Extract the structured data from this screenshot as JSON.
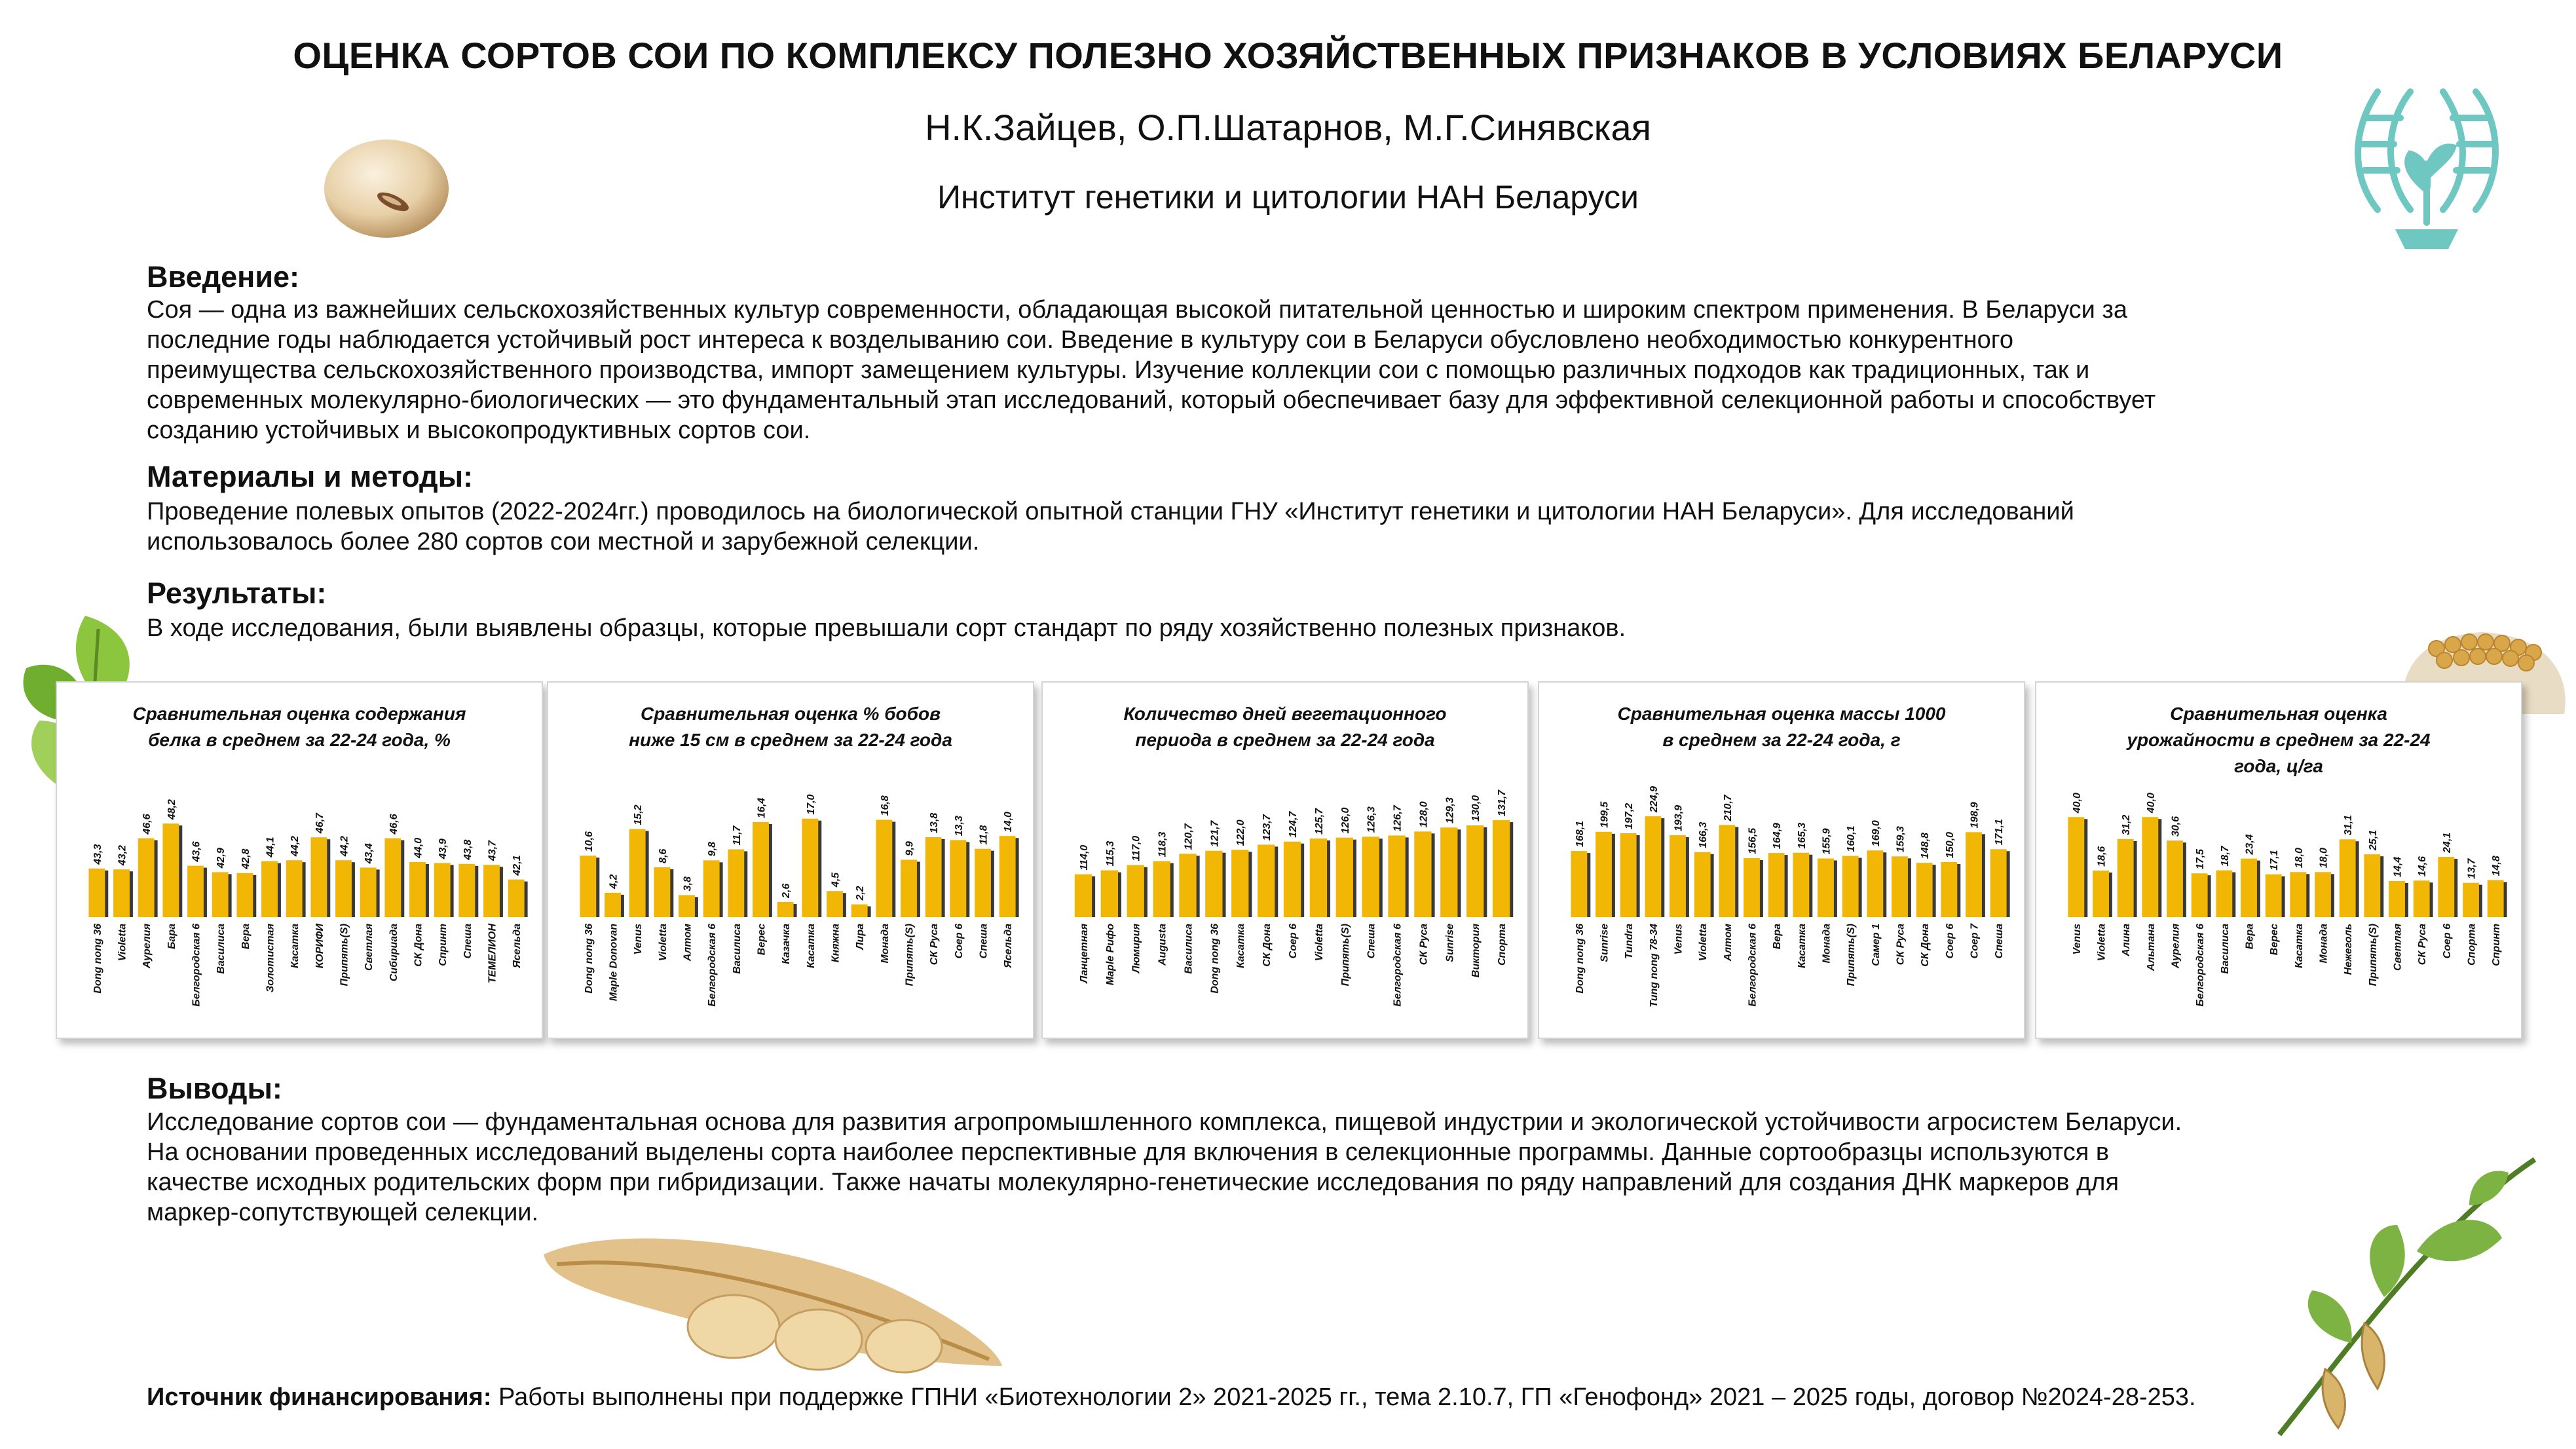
{
  "header": {
    "title": "ОЦЕНКА СОРТОВ СОИ ПО КОМПЛЕКСУ ПОЛЕЗНО ХОЗЯЙСТВЕННЫХ ПРИЗНАКОВ В УСЛОВИЯХ БЕЛАРУСИ",
    "authors": "Н.К.Зайцев, О.П.Шатарнов, М.Г.Синявская",
    "institute": "Институт генетики и цитологии НАН Беларуси"
  },
  "intro": {
    "heading": "Введение:",
    "lines": [
      "Соя — одна из важнейших сельскохозяйственных культур современности, обладающая высокой питательной ценностью и широким спектром применения. В Беларуси за",
      "последние годы наблюдается устойчивый рост интереса к  возделыванию сои. Введение в культуру сои в Беларуси обусловлено необходимостью конкурентного",
      "преимущества сельскохозяйственного производства, импорт замещением культуры. Изучение коллекции сои с помощью различных подходов как традиционных, так и",
      "современных молекулярно-биологических — это фундаментальный этап исследований, который обеспечивает базу для эффективной селекционной работы и способствует",
      "созданию устойчивых и высокопродуктивных сортов сои."
    ]
  },
  "methods": {
    "heading": "Материалы и методы:",
    "lines": [
      "Проведение полевых опытов (2022-2024гг.) проводилось на биологической опытной станции ГНУ «Институт генетики и цитологии НАН Беларуси». Для исследований",
      "использовалось более 280 сортов сои местной и зарубежной селекции."
    ]
  },
  "results": {
    "heading": "Результаты:",
    "lines": [
      "В ходе исследования, были выявлены образцы, которые превышали сорт стандарт по ряду хозяйственно полезных признаков."
    ]
  },
  "conclusions": {
    "heading": "Выводы:",
    "lines": [
      "Исследование сортов сои — фундаментальная основа для развития агропромышленного комплекса, пищевой индустрии и экологической устойчивости агросистем Беларуси.",
      "На основании проведенных исследований выделены сорта наиболее перспективные для включения в селекционные программы. Данные сортообразцы используются в",
      "качестве исходных родительских форм при гибридизации. Также начаты молекулярно-генетические исследования по ряду направлений для создания ДНК маркеров для",
      "маркер-сопутствующей селекции."
    ]
  },
  "funding": {
    "label": "Источник финансирования:",
    "text": " Работы выполнены при поддержке ГПНИ «Биотехнологии 2» 2021-2025 гг., тема 2.10.7, ГП «Генофонд» 2021 – 2025 годы, договор №2024-28-253."
  },
  "colors": {
    "bar": "#f2b705",
    "bar_shadow": "#3a3a3a",
    "logo": "#6fc7c2"
  },
  "chart_data": [
    {
      "type": "bar",
      "title_lines": [
        "Сравнительная оценка содержания",
        "белка в среднем за 22-24 года, %"
      ],
      "categories": [
        "Dong nong 36",
        "Violetta",
        "Аурелия",
        "Бара",
        "Белгородская 6",
        "Василиса",
        "Вера",
        "Золотистая",
        "Касатка",
        "КОРИФИ",
        "Припять(S)",
        "Светлая",
        "Сибириада",
        "СК Дона",
        "Спринт",
        "Спеша",
        "ТЕМЕЛИОН",
        "Ясельда"
      ],
      "values": [
        43.3,
        43.2,
        46.6,
        48.2,
        43.6,
        42.9,
        42.8,
        44.1,
        44.2,
        46.7,
        44.2,
        43.4,
        46.6,
        44.0,
        43.9,
        43.8,
        43.7,
        42.1
      ],
      "value_labels": [
        "43,3",
        "43,2",
        "46,6",
        "48,2",
        "43,6",
        "42,9",
        "42,8",
        "44,1",
        "44,2",
        "46,7",
        "44,2",
        "43,4",
        "46,6",
        "44,0",
        "43,9",
        "43,8",
        "43,7",
        "42,1"
      ],
      "ylim": [
        38,
        50
      ]
    },
    {
      "type": "bar",
      "title_lines": [
        "Сравнительная оценка % бобов",
        "ниже 15 см в среднем за 22-24 года"
      ],
      "categories": [
        "Dong nong 36",
        "Maple Donovan",
        "Venus",
        "Violetta",
        "Алтом",
        "Белгородская 6",
        "Василиса",
        "Верес",
        "Казачка",
        "Касатка",
        "Княжна",
        "Лира",
        "Монада",
        "Припять(S)",
        "СК Руса",
        "Соер 6",
        "Спеша",
        "Ясельда"
      ],
      "values": [
        10.6,
        4.2,
        15.2,
        8.6,
        3.8,
        9.8,
        11.7,
        16.4,
        2.6,
        17.0,
        4.5,
        2.2,
        16.8,
        9.9,
        13.8,
        13.3,
        11.8,
        14.0
      ],
      "value_labels": [
        "10,6",
        "4,2",
        "15,2",
        "8,6",
        "3,8",
        "9,8",
        "11,7",
        "16,4",
        "2,6",
        "17,0",
        "4,5",
        "2,2",
        "16,8",
        "9,9",
        "13,8",
        "13,3",
        "11,8",
        "14,0"
      ],
      "ylim": [
        0,
        19
      ]
    },
    {
      "type": "bar",
      "title_lines": [
        "Количество дней вегетационного",
        "периода в среднем за 22-24 года"
      ],
      "categories": [
        "Ланцетная",
        "Maple Puфо",
        "Люмирия",
        "Augusta",
        "Василиса",
        "Dong nong 36",
        "Касатка",
        "СК Дона",
        "Соер 6",
        "Violetta",
        "Припять(S)",
        "Спеша",
        "Белгородская 6",
        "СК Руса",
        "Sunrise",
        "Виктория",
        "Спорта"
      ],
      "values": [
        114.0,
        115.3,
        117.0,
        118.3,
        120.7,
        121.7,
        122.0,
        123.7,
        124.7,
        125.7,
        126.0,
        126.3,
        126.7,
        128.0,
        129.3,
        130.0,
        131.7
      ],
      "value_labels": [
        "114,0",
        "115,3",
        "117,0",
        "118,3",
        "120,7",
        "121,7",
        "122,0",
        "123,7",
        "124,7",
        "125,7",
        "126,0",
        "126,3",
        "126,7",
        "128,0",
        "129,3",
        "130,0",
        "131,7"
      ],
      "ylim": [
        100,
        136
      ]
    },
    {
      "type": "bar",
      "title_lines": [
        "Сравнительная оценка массы 1000",
        "в среднем за 22-24 года, г"
      ],
      "categories": [
        "Dong nong 36",
        "Sunrise",
        "Tundra",
        "Tung nong 78-34",
        "Venus",
        "Violetta",
        "Алтом",
        "Белгородская 6",
        "Вера",
        "Касатка",
        "Монада",
        "Припять(S)",
        "Самер 1",
        "СК Руса",
        "СК Дона",
        "Соер 6",
        "Соер 7",
        "Спеша"
      ],
      "values": [
        168.1,
        199.5,
        197.2,
        224.9,
        193.9,
        166.3,
        210.7,
        156.5,
        164.9,
        165.3,
        155.9,
        160.1,
        169.0,
        159.3,
        148.8,
        150.0,
        198.9,
        171.1
      ],
      "value_labels": [
        "168,1",
        "199,5",
        "197,2",
        "224,9",
        "193,9",
        "166,3",
        "210,7",
        "156,5",
        "164,9",
        "165,3",
        "155,9",
        "160,1",
        "169,0",
        "159,3",
        "148,8",
        "150,0",
        "198,9",
        "171,1"
      ],
      "ylim": [
        60,
        240
      ]
    },
    {
      "type": "bar",
      "title_lines": [
        "Сравнительная оценка",
        "урожайности в среднем за 22-24",
        "года, ц/га"
      ],
      "categories": [
        "Venus",
        "Violetta",
        "Алина",
        "Альтана",
        "Аурелия",
        "Белгородская 6",
        "Василиса",
        "Вера",
        "Верес",
        "Касатка",
        "Монада",
        "Нежеголь",
        "Припять(S)",
        "Светлая",
        "СК Руса",
        "Соер 6",
        "Спорта",
        "Спринт"
      ],
      "values": [
        40.0,
        18.6,
        31.2,
        40.0,
        30.6,
        17.5,
        18.7,
        23.4,
        17.1,
        18.0,
        18.0,
        31.1,
        25.1,
        14.4,
        14.6,
        24.1,
        13.7,
        14.8
      ],
      "value_labels": [
        "40,0",
        "18,6",
        "31,2",
        "40,0",
        "30,6",
        "17,5",
        "18,7",
        "23,4",
        "17,1",
        "18,0",
        "18,0",
        "31,1",
        "25,1",
        "14,4",
        "14,6",
        "24,1",
        "13,7",
        "14,8"
      ],
      "ylim": [
        0,
        44
      ]
    }
  ]
}
